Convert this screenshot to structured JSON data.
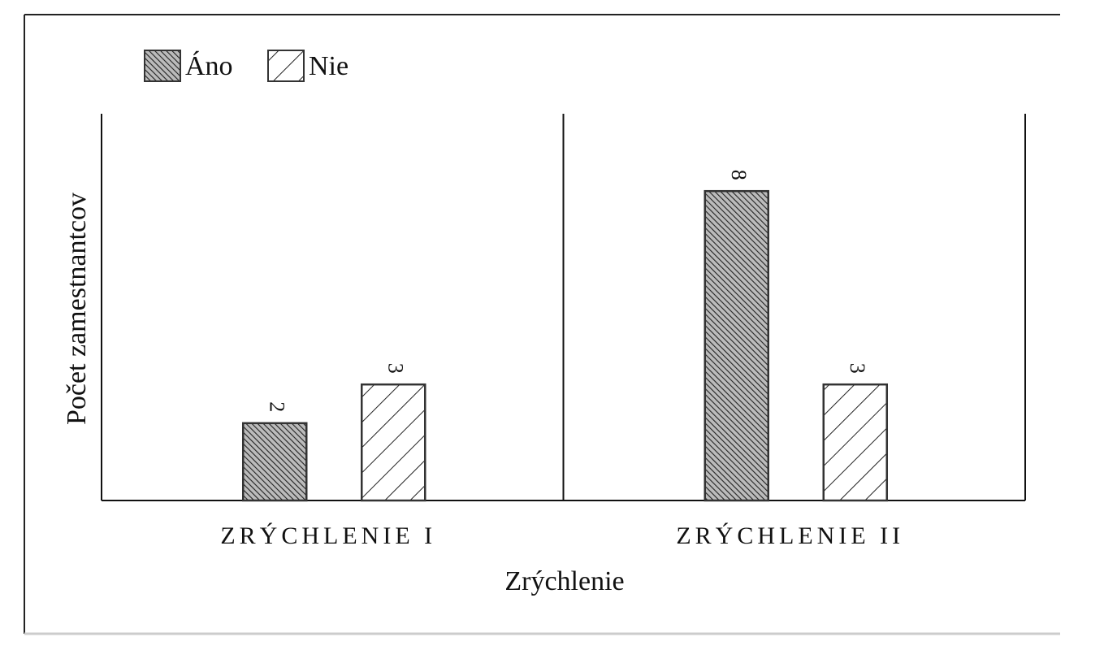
{
  "chart_data": {
    "type": "bar",
    "y_label": "Počet zamestnantcov",
    "x_label": "Zrýchlenie",
    "categories": [
      "ZRÝCHLENIE I",
      "ZRÝCHLENIE II"
    ],
    "series": [
      {
        "name": "Áno",
        "color": "#333333",
        "values": [
          2,
          8
        ]
      },
      {
        "name": "Nie",
        "color": "#333333",
        "values": [
          3,
          3
        ]
      }
    ],
    "ylim": [
      0,
      10
    ]
  }
}
